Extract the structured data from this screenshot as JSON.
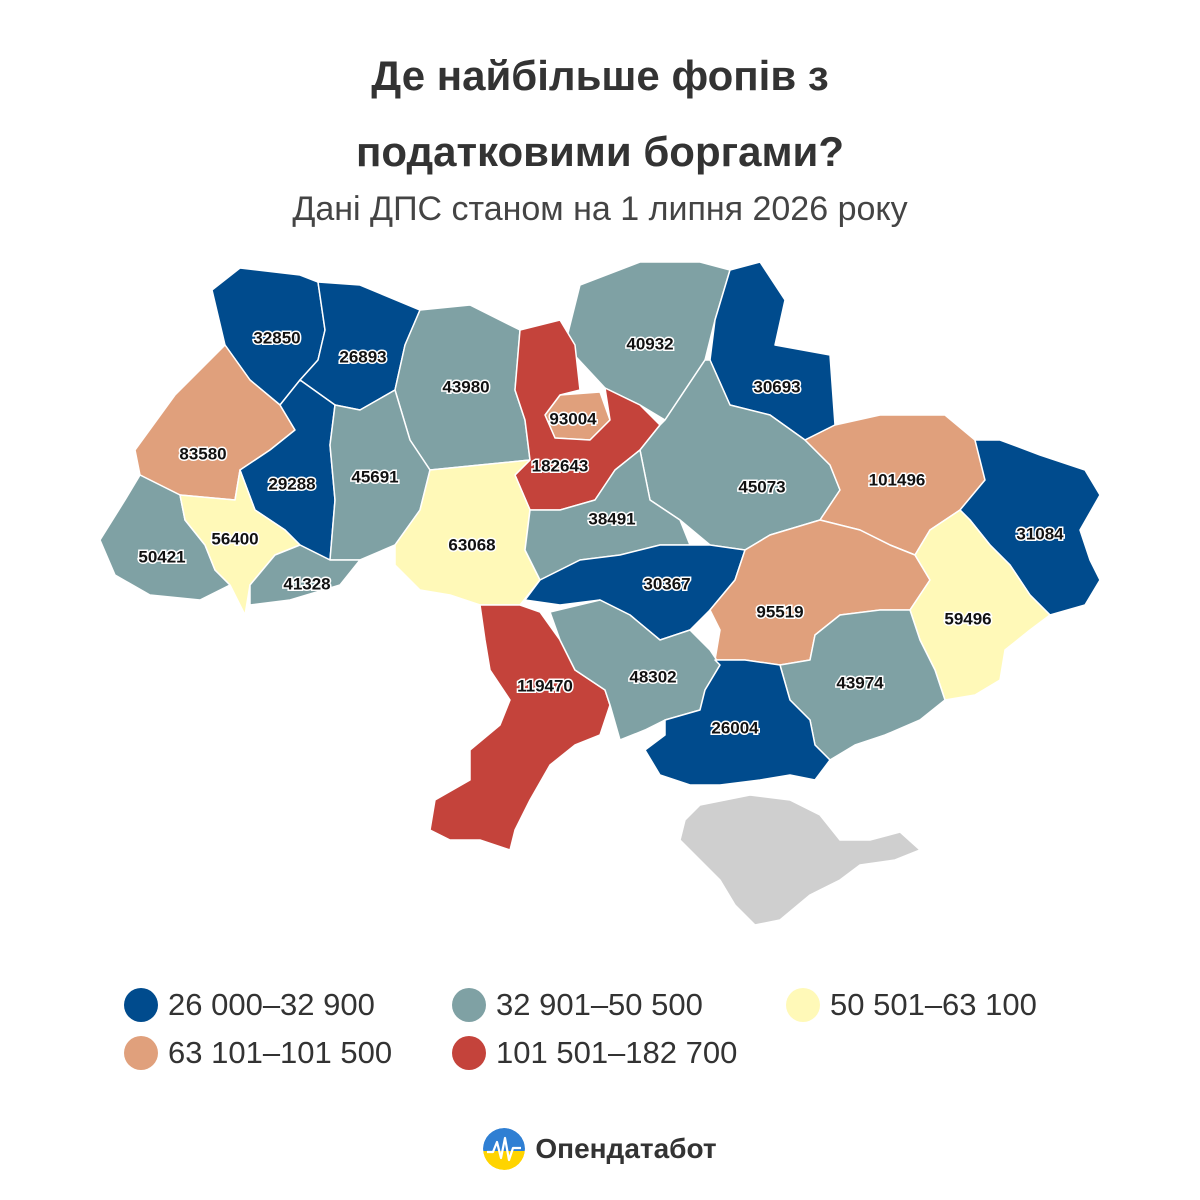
{
  "title_line1": "Де найбільше фопів з",
  "title_line2": "податковими боргами?",
  "subtitle": "Дані ДПС станом на 1 липня 2026 року",
  "colors": {
    "c1": "#004B8D",
    "c2": "#7FA1A4",
    "c3": "#FFF9B8",
    "c4": "#E0A07C",
    "c5": "#C4433B",
    "crimea": "#CFCFCF",
    "border": "#FFFFFF"
  },
  "legend": [
    {
      "label": "26 000–32 900",
      "color": "#004B8D"
    },
    {
      "label": "32 901–50 500",
      "color": "#7FA1A4"
    },
    {
      "label": "50 501–63 100",
      "color": "#FFF9B8"
    },
    {
      "label": "63 101–101 500",
      "color": "#E0A07C"
    },
    {
      "label": "101 501–182 700",
      "color": "#C4433B"
    }
  ],
  "regions": [
    {
      "value": "32850",
      "cls": "c1"
    },
    {
      "value": "26893",
      "cls": "c1"
    },
    {
      "value": "43980",
      "cls": "c2"
    },
    {
      "value": "93004",
      "cls": "c4"
    },
    {
      "value": "40932",
      "cls": "c2"
    },
    {
      "value": "30693",
      "cls": "c1"
    },
    {
      "value": "83580",
      "cls": "c4"
    },
    {
      "value": "29288",
      "cls": "c1"
    },
    {
      "value": "45691",
      "cls": "c2"
    },
    {
      "value": "182643",
      "cls": "c5"
    },
    {
      "value": "45073",
      "cls": "c2"
    },
    {
      "value": "101496",
      "cls": "c4"
    },
    {
      "value": "31084",
      "cls": "c1"
    },
    {
      "value": "50421",
      "cls": "c2"
    },
    {
      "value": "56400",
      "cls": "c3"
    },
    {
      "value": "63068",
      "cls": "c3"
    },
    {
      "value": "38491",
      "cls": "c2"
    },
    {
      "value": "41328",
      "cls": "c2"
    },
    {
      "value": "30367",
      "cls": "c1"
    },
    {
      "value": "95519",
      "cls": "c4"
    },
    {
      "value": "59496",
      "cls": "c3"
    },
    {
      "value": "119470",
      "cls": "c5"
    },
    {
      "value": "48302",
      "cls": "c2"
    },
    {
      "value": "43974",
      "cls": "c2"
    },
    {
      "value": "26004",
      "cls": "c1"
    },
    {
      "value": "",
      "cls": "crimea"
    }
  ],
  "brand": "Опендатабот"
}
